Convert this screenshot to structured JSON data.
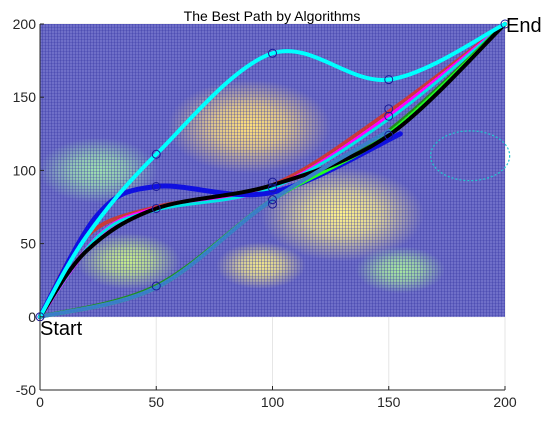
{
  "chart_data": {
    "type": "line",
    "title": "The Best Path by Algorithms",
    "xlabel": "",
    "ylabel": "",
    "xlim": [
      0,
      200
    ],
    "ylim": [
      -50,
      200
    ],
    "xticks": [
      0,
      50,
      100,
      150,
      200
    ],
    "yticks": [
      -50,
      0,
      50,
      100,
      150,
      200
    ],
    "grid": true,
    "background": {
      "type": "heatmap",
      "extent": {
        "x": [
          0,
          200
        ],
        "y": [
          0,
          200
        ]
      },
      "base_color": "#6f6fc8",
      "peaks": [
        {
          "x": 130,
          "y": 70,
          "rx": 22,
          "ry": 20,
          "color": "#fff38a"
        },
        {
          "x": 90,
          "y": 130,
          "rx": 22,
          "ry": 20,
          "color": "#ffe07a"
        },
        {
          "x": 95,
          "y": 35,
          "rx": 12,
          "ry": 10,
          "color": "#f2e88a"
        },
        {
          "x": 38,
          "y": 38,
          "rx": 14,
          "ry": 12,
          "color": "#c7ef8a"
        },
        {
          "x": 25,
          "y": 100,
          "rx": 16,
          "ry": 14,
          "color": "#9fe0b0"
        },
        {
          "x": 155,
          "y": 32,
          "rx": 12,
          "ry": 10,
          "color": "#a7e8a0"
        }
      ]
    },
    "circles": [
      {
        "cx": 185,
        "cy": 110,
        "r": 17,
        "color": "#20c8d0"
      }
    ],
    "series": [
      {
        "color": "#c83a3a",
        "width": 4,
        "points": [
          [
            0,
            0
          ],
          [
            20,
            55
          ],
          [
            50,
            75
          ],
          [
            100,
            90
          ],
          [
            150,
            140
          ],
          [
            200,
            200
          ]
        ]
      },
      {
        "color": "#ff00ff",
        "width": 4,
        "points": [
          [
            0,
            0
          ],
          [
            25,
            55
          ],
          [
            50,
            74
          ],
          [
            100,
            88
          ],
          [
            150,
            137
          ],
          [
            200,
            200
          ]
        ]
      },
      {
        "color": "#00e5e5",
        "width": 3,
        "points": [
          [
            0,
            0
          ],
          [
            25,
            55
          ],
          [
            50,
            73
          ],
          [
            100,
            88
          ],
          [
            150,
            135
          ],
          [
            200,
            200
          ]
        ]
      },
      {
        "color": "#1010e0",
        "width": 5,
        "points": [
          [
            0,
            0
          ],
          [
            25,
            70
          ],
          [
            50,
            89
          ],
          [
            100,
            85
          ],
          [
            155,
            125
          ]
        ]
      },
      {
        "color": "#228b22",
        "width": 4,
        "points": [
          [
            0,
            0
          ],
          [
            50,
            21
          ],
          [
            100,
            80
          ],
          [
            150,
            127
          ],
          [
            200,
            200
          ]
        ]
      },
      {
        "color": "#20ff20",
        "width": 4,
        "points": [
          [
            0,
            0
          ],
          [
            50,
            20
          ],
          [
            100,
            80
          ],
          [
            150,
            125
          ],
          [
            200,
            200
          ]
        ]
      },
      {
        "color": "#000000",
        "width": 4,
        "points": [
          [
            0,
            0
          ],
          [
            20,
            45
          ],
          [
            50,
            74
          ],
          [
            100,
            90
          ],
          [
            150,
            124
          ],
          [
            200,
            200
          ]
        ]
      },
      {
        "color": "#3a7ec8",
        "width": 4,
        "points": [
          [
            0,
            0
          ],
          [
            50,
            20
          ],
          [
            100,
            80
          ],
          [
            150,
            127
          ]
        ]
      },
      {
        "color": "#00ffff",
        "width": 4,
        "points": [
          [
            0,
            0
          ],
          [
            20,
            55
          ],
          [
            50,
            111
          ],
          [
            100,
            180
          ],
          [
            150,
            162
          ],
          [
            200,
            200
          ]
        ]
      }
    ],
    "markers": [
      {
        "x": 50,
        "y": 111
      },
      {
        "x": 100,
        "y": 180
      },
      {
        "x": 150,
        "y": 162
      },
      {
        "x": 200,
        "y": 200
      },
      {
        "x": 50,
        "y": 89
      },
      {
        "x": 100,
        "y": 92
      },
      {
        "x": 150,
        "y": 142
      },
      {
        "x": 50,
        "y": 74
      },
      {
        "x": 100,
        "y": 88
      },
      {
        "x": 150,
        "y": 137
      },
      {
        "x": 50,
        "y": 21
      },
      {
        "x": 100,
        "y": 80
      },
      {
        "x": 100,
        "y": 77
      },
      {
        "x": 150,
        "y": 124
      },
      {
        "x": 0,
        "y": 0
      }
    ],
    "annotations": [
      {
        "text": "Start",
        "x": 0,
        "y": 0,
        "anchor": "below-right"
      },
      {
        "text": "End",
        "x": 200,
        "y": 200,
        "anchor": "right"
      }
    ]
  }
}
